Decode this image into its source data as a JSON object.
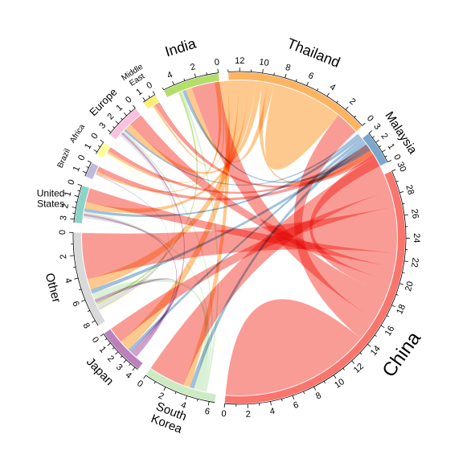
{
  "chart_data": {
    "type": "chord",
    "title": "",
    "unit": "",
    "sectors": [
      {
        "id": "china",
        "name": "China",
        "color": "#F8766D",
        "max": 30,
        "tick_step": 2,
        "tick_labels": [
          "0",
          "2",
          "4",
          "6",
          "8",
          "10",
          "12",
          "14",
          "16",
          "18",
          "20",
          "22",
          "24",
          "26",
          "28",
          "30"
        ]
      },
      {
        "id": "malaysia",
        "name": "Malaysia",
        "color": "#7BA7CF",
        "max": 3,
        "tick_step": 1,
        "tick_labels": [
          "0",
          "1",
          "2",
          "3"
        ]
      },
      {
        "id": "thailand",
        "name": "Thailand",
        "color": "#FDB462",
        "max": 13,
        "tick_step": 2,
        "tick_labels": [
          "0",
          "2",
          "4",
          "6",
          "8",
          "10",
          "12"
        ]
      },
      {
        "id": "india",
        "name": "India",
        "color": "#B3DE69",
        "max": 5,
        "tick_step": 2,
        "tick_labels": [
          "0",
          "2",
          "4"
        ]
      },
      {
        "id": "middle_east",
        "name": "Middle East",
        "label_lines": [
          "Middle",
          "East"
        ],
        "color": "#FFED6F",
        "max": 1.2,
        "tick_step": 1,
        "tick_labels": [
          "0",
          "1"
        ]
      },
      {
        "id": "europe",
        "name": "Europe",
        "color": "#F9C1DE",
        "max": 3.2,
        "tick_step": 1,
        "tick_labels": [
          "0",
          "1",
          "2",
          "3"
        ]
      },
      {
        "id": "africa",
        "name": "Africa",
        "color": "#FFFF99",
        "max": 1.2,
        "tick_step": 1,
        "tick_labels": [
          "0",
          "1"
        ]
      },
      {
        "id": "brazil",
        "name": "Brazil",
        "color": "#BEBADA",
        "max": 1.3,
        "tick_step": 1,
        "tick_labels": [
          "0",
          "1"
        ]
      },
      {
        "id": "united_states",
        "name": "United States",
        "label_lines": [
          "United",
          "States"
        ],
        "color": "#8DD3C7",
        "max": 3.3,
        "tick_step": 1,
        "tick_labels": [
          "0",
          "1",
          "2",
          "3"
        ]
      },
      {
        "id": "other",
        "name": "Other",
        "color": "#D9D9D9",
        "max": 8.5,
        "tick_step": 2,
        "tick_labels": [
          "0",
          "2",
          "4",
          "6",
          "8"
        ]
      },
      {
        "id": "japan",
        "name": "Japan",
        "color": "#BC80BD",
        "max": 4.3,
        "tick_step": 1,
        "tick_labels": [
          "0",
          "1",
          "2",
          "3",
          "4"
        ]
      },
      {
        "id": "south_korea",
        "name": "South Korea",
        "label_lines": [
          "South",
          "Korea"
        ],
        "color": "#CCEBC5",
        "max": 6.5,
        "tick_step": 2,
        "tick_labels": [
          "0",
          "2",
          "4",
          "6"
        ]
      }
    ],
    "flows": [
      {
        "from": "china",
        "to": "china",
        "value": 7.0
      },
      {
        "from": "china",
        "to": "thailand",
        "value": 2.2
      },
      {
        "from": "china",
        "to": "india",
        "value": 2.6
      },
      {
        "from": "china",
        "to": "malaysia",
        "value": 1.2
      },
      {
        "from": "china",
        "to": "europe",
        "value": 1.3
      },
      {
        "from": "china",
        "to": "united_states",
        "value": 1.3
      },
      {
        "from": "china",
        "to": "other",
        "value": 4.3
      },
      {
        "from": "china",
        "to": "japan",
        "value": 1.5
      },
      {
        "from": "china",
        "to": "south_korea",
        "value": 3.4
      },
      {
        "from": "china",
        "to": "middle_east",
        "value": 0.5
      },
      {
        "from": "china",
        "to": "brazil",
        "value": 0.5
      },
      {
        "from": "china",
        "to": "africa",
        "value": 0.4
      },
      {
        "from": "thailand",
        "to": "thailand",
        "value": 3.3
      },
      {
        "from": "thailand",
        "to": "india",
        "value": 0.6
      },
      {
        "from": "thailand",
        "to": "malaysia",
        "value": 0.5
      },
      {
        "from": "thailand",
        "to": "europe",
        "value": 0.6
      },
      {
        "from": "thailand",
        "to": "united_states",
        "value": 0.6
      },
      {
        "from": "thailand",
        "to": "other",
        "value": 1.0
      },
      {
        "from": "thailand",
        "to": "japan",
        "value": 1.0
      },
      {
        "from": "thailand",
        "to": "south_korea",
        "value": 0.6
      },
      {
        "from": "thailand",
        "to": "middle_east",
        "value": 0.2
      },
      {
        "from": "thailand",
        "to": "brazil",
        "value": 0.2
      },
      {
        "from": "thailand",
        "to": "africa",
        "value": 0.2
      },
      {
        "from": "malaysia",
        "to": "india",
        "value": 0.3
      },
      {
        "from": "malaysia",
        "to": "other",
        "value": 0.4
      },
      {
        "from": "malaysia",
        "to": "south_korea",
        "value": 0.4
      },
      {
        "from": "malaysia",
        "to": "japan",
        "value": 0.3
      },
      {
        "from": "malaysia",
        "to": "united_states",
        "value": 0.3
      },
      {
        "from": "malaysia",
        "to": "europe",
        "value": 0.2
      },
      {
        "from": "south_korea",
        "to": "other",
        "value": 0.6
      },
      {
        "from": "south_korea",
        "to": "united_states",
        "value": 0.2
      },
      {
        "from": "south_korea",
        "to": "europe",
        "value": 0.2
      },
      {
        "from": "south_korea",
        "to": "india",
        "value": 0.2
      },
      {
        "from": "japan",
        "to": "other",
        "value": 0.3
      },
      {
        "from": "japan",
        "to": "united_states",
        "value": 0.2
      },
      {
        "from": "japan",
        "to": "europe",
        "value": 0.2
      },
      {
        "from": "india",
        "to": "other",
        "value": 0.2
      },
      {
        "from": "other",
        "to": "united_states",
        "value": 0.2
      },
      {
        "from": "other",
        "to": "europe",
        "value": 0.2
      },
      {
        "from": "brazil",
        "to": "other",
        "value": 0.1
      },
      {
        "from": "africa",
        "to": "other",
        "value": 0.1
      }
    ]
  }
}
